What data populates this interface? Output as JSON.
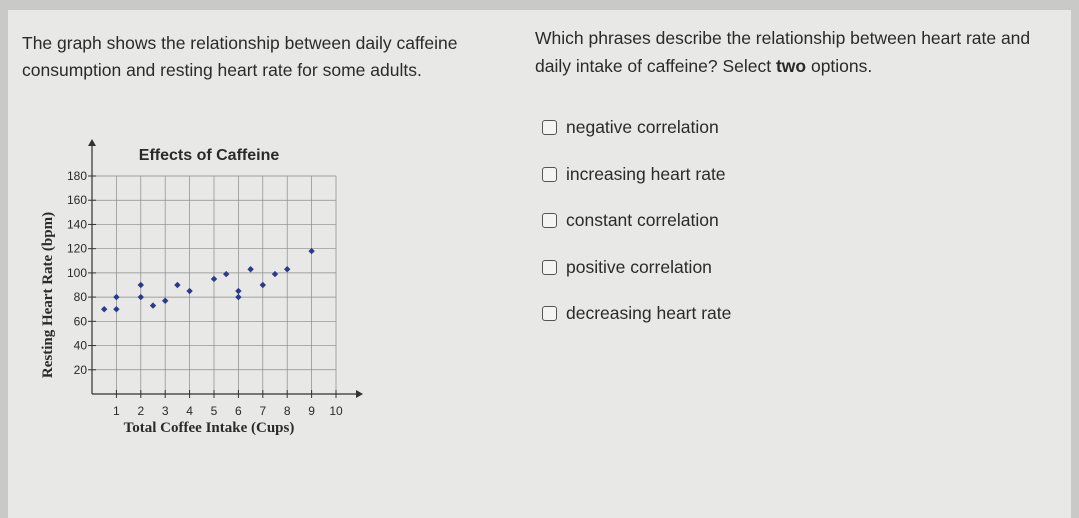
{
  "intro": {
    "text": "The graph shows the relationship between daily caffeine consumption and resting heart rate for some adults."
  },
  "question": {
    "prefix": "Which phrases describe the relationship between heart rate and daily intake of caffeine? Select ",
    "emphasis": "two",
    "suffix": " options."
  },
  "options": [
    {
      "label": "negative correlation",
      "checked": false
    },
    {
      "label": "increasing heart rate",
      "checked": false
    },
    {
      "label": "constant correlation",
      "checked": false
    },
    {
      "label": "positive correlation",
      "checked": false
    },
    {
      "label": "decreasing heart rate",
      "checked": false
    }
  ],
  "colors": {
    "points": "#2b3a8f",
    "grid": "#8a8a8a",
    "axis": "#333333",
    "text": "#2a2a2a"
  },
  "chart_data": {
    "type": "scatter",
    "title": "Effects of Caffeine",
    "xlabel": "Total Coffee Intake (Cups)",
    "ylabel": "Resting Heart Rate (bpm)",
    "xlim": [
      0,
      10
    ],
    "ylim": [
      0,
      180
    ],
    "xticks": [
      1,
      2,
      3,
      4,
      5,
      6,
      7,
      8,
      9,
      10
    ],
    "yticks": [
      20,
      40,
      60,
      80,
      100,
      120,
      140,
      160,
      180
    ],
    "grid": true,
    "points": [
      {
        "x": 0.5,
        "y": 70
      },
      {
        "x": 1.0,
        "y": 70
      },
      {
        "x": 1.0,
        "y": 80
      },
      {
        "x": 2.0,
        "y": 80
      },
      {
        "x": 2.0,
        "y": 90
      },
      {
        "x": 2.5,
        "y": 73
      },
      {
        "x": 3.0,
        "y": 77
      },
      {
        "x": 3.5,
        "y": 90
      },
      {
        "x": 4.0,
        "y": 85
      },
      {
        "x": 5.0,
        "y": 95
      },
      {
        "x": 5.5,
        "y": 99
      },
      {
        "x": 6.0,
        "y": 80
      },
      {
        "x": 6.0,
        "y": 85
      },
      {
        "x": 6.5,
        "y": 103
      },
      {
        "x": 7.0,
        "y": 90
      },
      {
        "x": 7.5,
        "y": 99
      },
      {
        "x": 8.0,
        "y": 103
      },
      {
        "x": 9.0,
        "y": 118
      }
    ]
  }
}
